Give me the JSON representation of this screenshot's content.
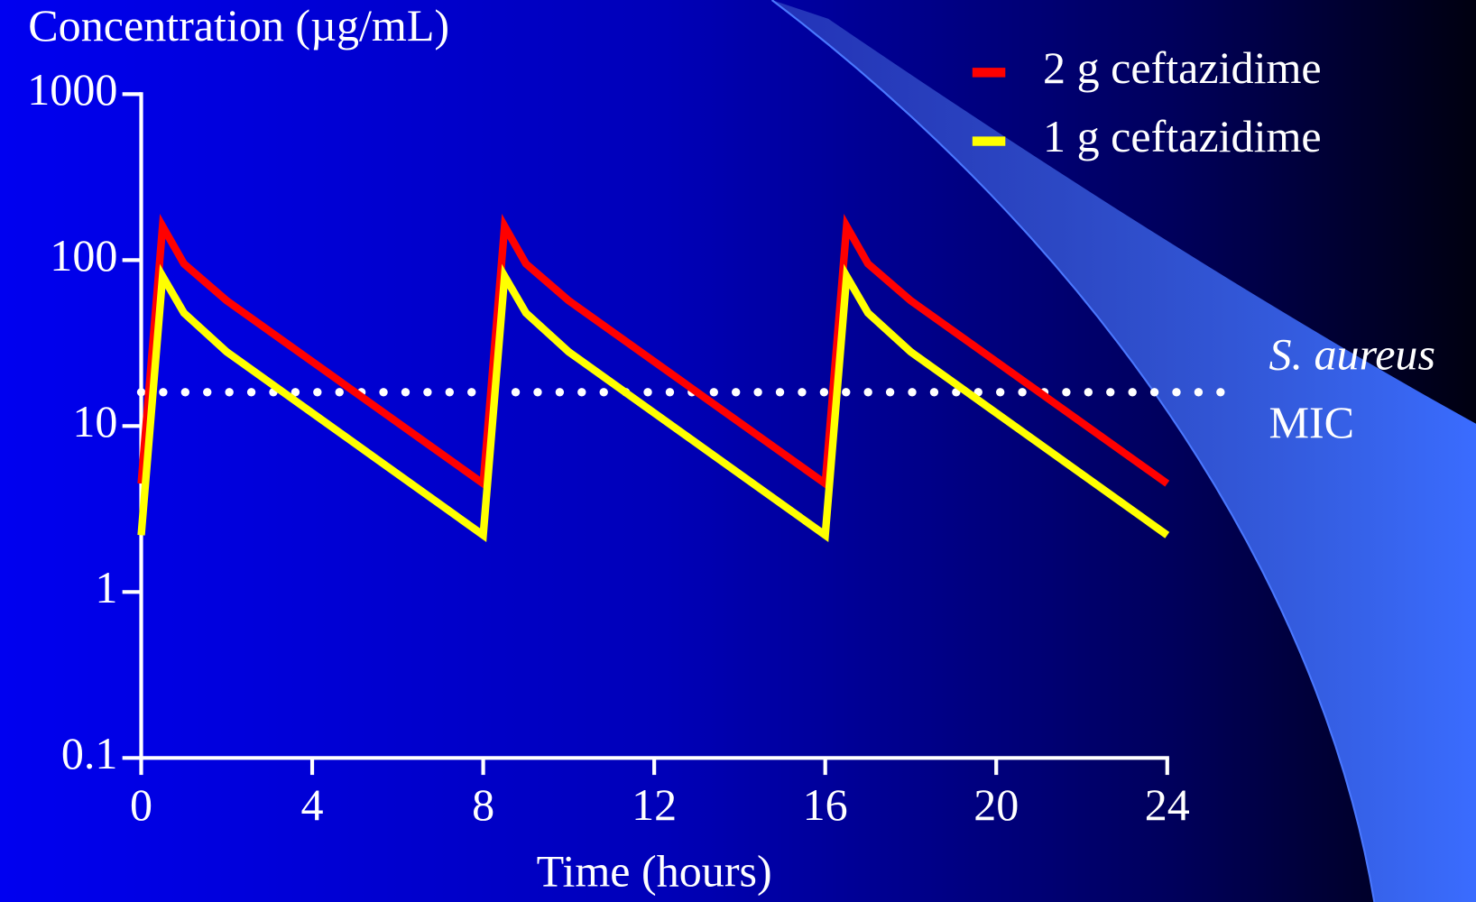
{
  "chart_data": {
    "type": "line",
    "title": "Concentration (µg/mL)",
    "x_label": "Time (hours)",
    "x": [
      0,
      0.5,
      1,
      2,
      8,
      8.5,
      9,
      10,
      16,
      16.5,
      17,
      18,
      24
    ],
    "series": [
      {
        "name": "2 g ceftazidime",
        "color": "#ff0000",
        "values": [
          4.5,
          160,
          95,
          57,
          4.5,
          160,
          95,
          57,
          4.5,
          160,
          95,
          57,
          4.5
        ]
      },
      {
        "name": "1 g ceftazidime",
        "color": "#ffff00",
        "values": [
          2.2,
          80,
          48,
          28,
          2.2,
          80,
          48,
          28,
          2.2,
          80,
          48,
          28,
          2.2
        ]
      }
    ],
    "xlim": [
      0,
      24
    ],
    "xticks": [
      0,
      4,
      8,
      12,
      16,
      20,
      24
    ],
    "ylim": [
      0.1,
      1000
    ],
    "yticks": [
      0.1,
      1,
      10,
      100,
      1000
    ],
    "y_scale": "log",
    "reference_line": {
      "value": 16,
      "color": "#ffffff",
      "label_lines": [
        "S. aureus",
        "MIC"
      ]
    },
    "legend": "top-right"
  }
}
